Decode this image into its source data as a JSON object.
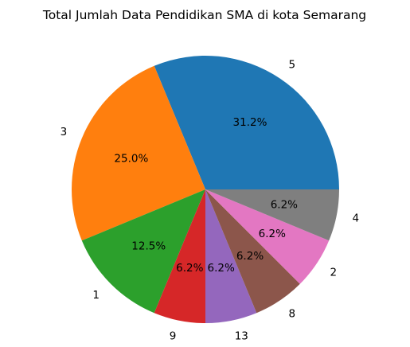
{
  "chart_data": {
    "type": "pie",
    "title": "Total Jumlah Data Pendidikan SMA di kota Semarang",
    "labels": [
      "5",
      "3",
      "1",
      "9",
      "13",
      "8",
      "2",
      "4"
    ],
    "values": [
      5,
      4,
      2,
      1,
      1,
      1,
      1,
      1
    ],
    "percent_labels": [
      "31.2%",
      "25.0%",
      "12.5%",
      "6.2%",
      "6.2%",
      "6.2%",
      "6.2%",
      "6.2%"
    ],
    "colors": [
      "#1f77b4",
      "#ff7f0e",
      "#2ca02c",
      "#d62728",
      "#9467bd",
      "#8c564b",
      "#e377c2",
      "#7f7f7f"
    ],
    "start_angle_deg": 0,
    "direction": "counterclockwise"
  }
}
